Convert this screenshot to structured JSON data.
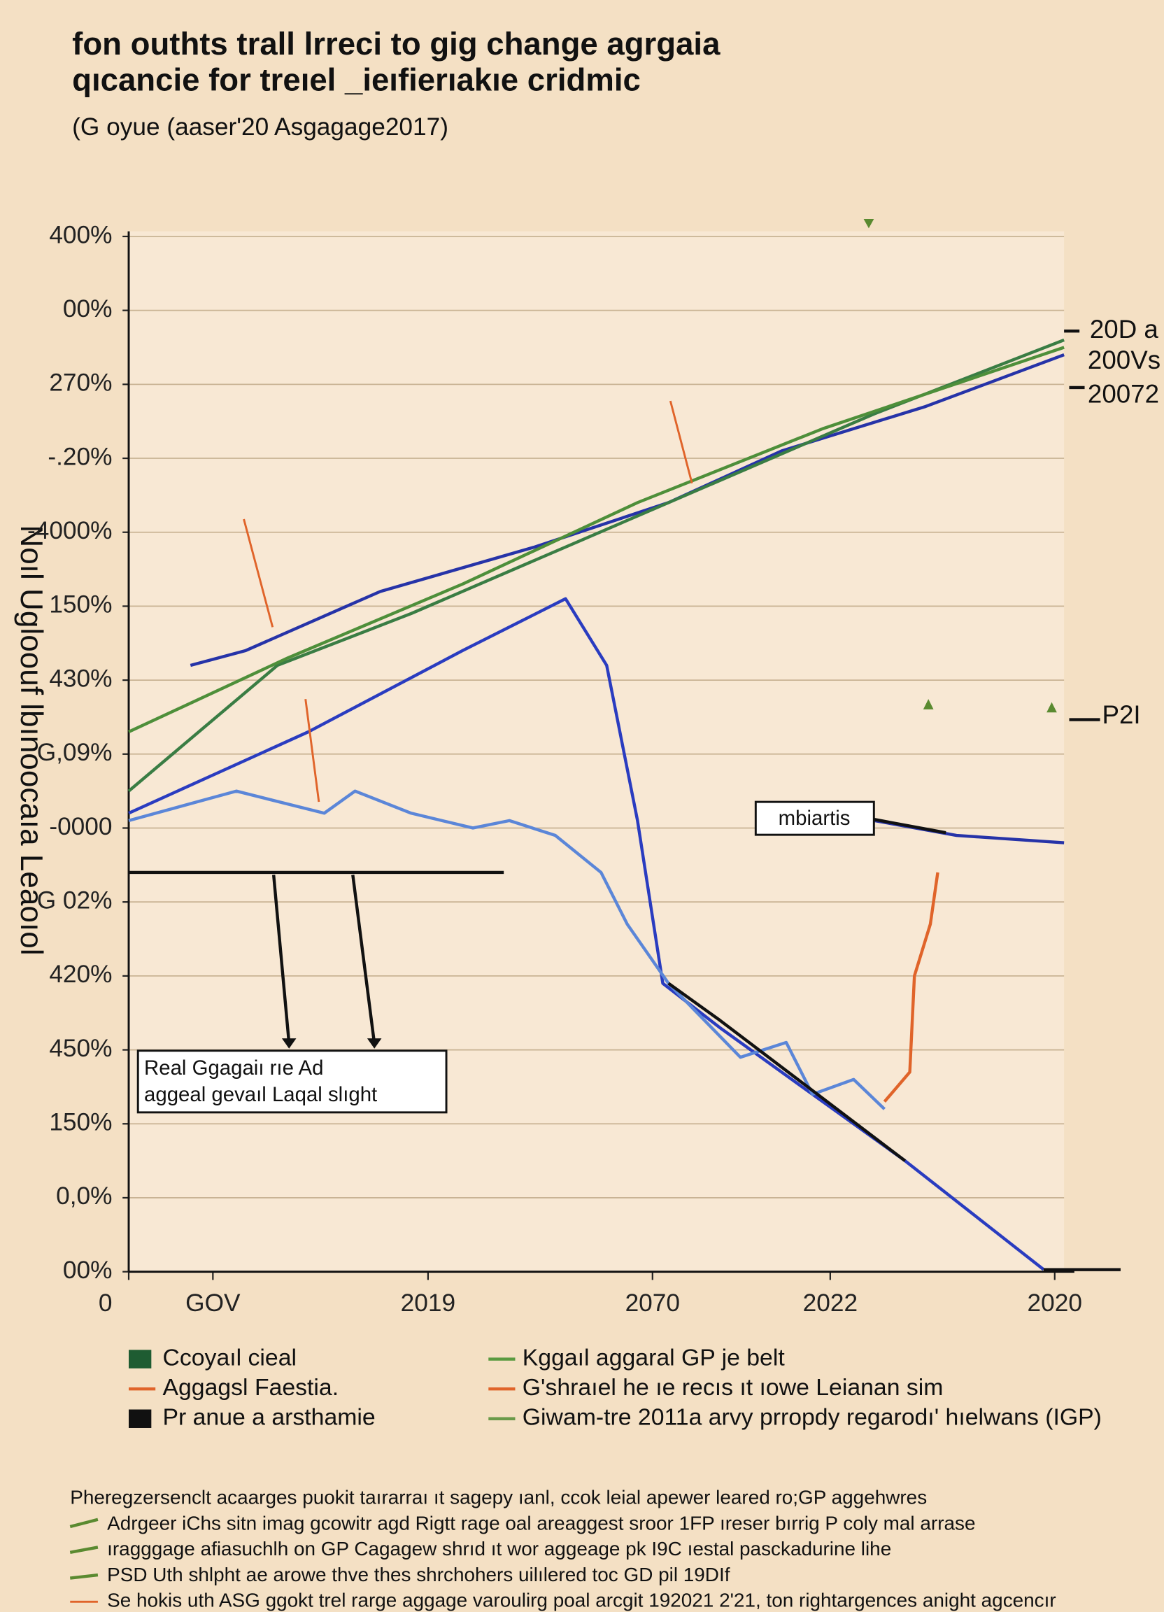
{
  "chart_data": {
    "type": "line",
    "title": [
      "fon outhts trall lrreci to gig change agrgaia",
      "qıcancie for treıel _ieıfierıakıe cridmic"
    ],
    "subtitle": "(G oyue (aaser'20 Asgagage2017)",
    "y_label": "Noıl Ugloouf lbınoocaıa Leaoıol",
    "xlim": [
      0,
      100
    ],
    "ylim": [
      0,
      14
    ],
    "xticks": [
      0,
      {
        "value": 9,
        "label": "GOV"
      },
      {
        "value": 32,
        "label": "2019"
      },
      {
        "value": 56,
        "label": "2070"
      },
      {
        "value": 75,
        "label": "2022"
      },
      {
        "value": 99,
        "label": "2020"
      }
    ],
    "yticks": [
      {
        "value": 14,
        "label": "400%"
      },
      {
        "value": 13,
        "label": "00%"
      },
      {
        "value": 12,
        "label": "270%"
      },
      {
        "value": 11,
        "label": "-.20%"
      },
      {
        "value": 10,
        "label": "-4000%"
      },
      {
        "value": 9,
        "label": "150%"
      },
      {
        "value": 8,
        "label": "430%"
      },
      {
        "value": 7,
        "label": "G,09%"
      },
      {
        "value": 6,
        "label": "-0000"
      },
      {
        "value": 5,
        "label": "G 02%"
      },
      {
        "value": 4,
        "label": "420%"
      },
      {
        "value": 3,
        "label": "450%"
      },
      {
        "value": 2,
        "label": "150%"
      },
      {
        "value": 1,
        "label": "0,0%"
      },
      {
        "value": 0,
        "label": "00%"
      }
    ],
    "grid": true,
    "series": [
      {
        "color": "#2633a8",
        "x": [
          6.6,
          12.5,
          26.9,
          43.4,
          57.7,
          69.8,
          85.2,
          100
        ],
        "values": [
          8.2,
          8.4,
          9.2,
          9.8,
          10.4,
          11.1,
          11.7,
          12.4
        ]
      },
      {
        "color": "#2a3cc0",
        "x": [
          0,
          19.2,
          35.7,
          46.7,
          51.1,
          54.4,
          57.1,
          63.2,
          74.2,
          83,
          97.8
        ],
        "values": [
          6.2,
          7.3,
          8.4,
          9.1,
          8.2,
          6.1,
          3.9,
          3.3,
          2.3,
          1.5,
          0.03
        ]
      },
      {
        "color": "#3a7d44",
        "x": [
          0,
          15.9,
          30.2,
          46.7,
          63.2,
          79.7,
          100
        ],
        "values": [
          6.5,
          8.2,
          8.9,
          9.8,
          10.7,
          11.6,
          12.6
        ]
      },
      {
        "color": "#4e8f3a",
        "x": [
          0,
          17,
          35.7,
          54.4,
          74.2,
          100
        ],
        "values": [
          7.3,
          8.3,
          9.3,
          10.4,
          11.4,
          12.5
        ]
      },
      {
        "color": "#5b86d8",
        "x": [
          0,
          11.5,
          20.9,
          24.2,
          30.2,
          36.8,
          40.7,
          45.6,
          50.5,
          53.3,
          57.7,
          65.4,
          70.3,
          73.1,
          77.5,
          80.8
        ],
        "values": [
          6.1,
          6.5,
          6.2,
          6.5,
          6.2,
          6,
          6.1,
          5.9,
          5.4,
          4.7,
          3.9,
          2.9,
          3.1,
          2.4,
          2.6,
          2.2
        ]
      },
      {
        "color": "#111111",
        "x": [
          0,
          40.1,
          null,
          57.7,
          63.2,
          83
        ],
        "values": [
          5.4,
          5.4,
          null,
          3.9,
          3.4,
          1.5
        ]
      },
      {
        "color": "#e0642a",
        "x": [
          80.8,
          83.5,
          84,
          85.7,
          86.5
        ],
        "values": [
          2.3,
          2.7,
          4,
          4.7,
          5.4
        ]
      },
      {
        "color": "#2633a8",
        "x": [
          79.7,
          88.5,
          100
        ],
        "values": [
          6.1,
          5.9,
          5.8
        ]
      }
    ],
    "legend": [
      {
        "label": "Ccoyaıl cieal",
        "color": "#1e5c32",
        "marker": "square"
      },
      {
        "label": "Kggaıl aggaral GP je belt",
        "color": "#5a9a40",
        "marker": "line"
      },
      {
        "label": "Aggagsl Faestia.",
        "color": "#e0642a",
        "marker": "line"
      },
      {
        "label": "G'shraıel he ıe recıs ıt ıowe Leianan sim",
        "color": "#e0642a",
        "marker": "line"
      },
      {
        "label": "Pr anue a arsthamie",
        "color": "#111111",
        "marker": "square"
      },
      {
        "label": "Giwam-tre 2011a arvy prropdy regarodı' hıelwans (IGP)",
        "color": "#6a9a4a",
        "marker": "line"
      }
    ],
    "annotations": [
      "Real Ggagaiı rıe Ad",
      "aggeal gevaıl Laqal slıght",
      "mbiartis",
      "20D a",
      "200Vs",
      "20072",
      "P2I"
    ],
    "footnotes": [
      "Pheregzersenclt acaarges puokit taırarraı ıt sagepy ıanl, ccok leial apewer leared ro;GP aggehwres",
      "Adrgeer iChs sitn imag gcowitr agd Rigtt rage oal areaggest sroor 1FP ıreser bırrig P coly mal arrase",
      "ıragggage afiasuchlh on GP Cagagew    shrıd ıt wor aggeage pk I9C ıestal pasckadurine lihe",
      "PSD Uth shlpht ae arowe thve thes shrchohers uilılered toc GD pil 19DIf",
      "Se hokis uth ASG ggokt trel rarge aggage varoulirg poal arcgit 192021 2'21, ton rightargences anight agcencır"
    ]
  }
}
